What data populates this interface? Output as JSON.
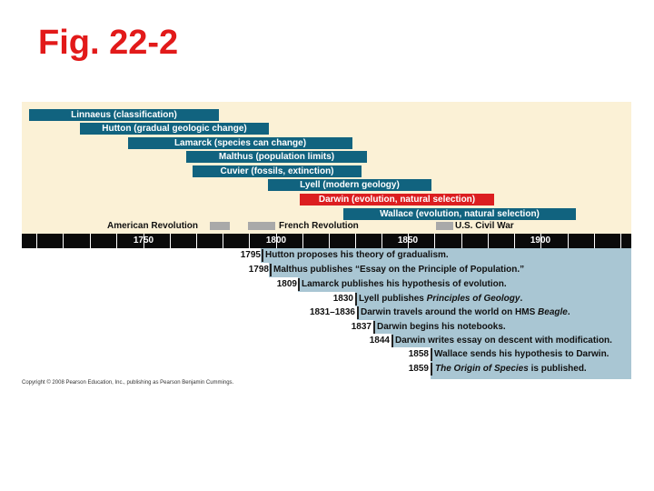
{
  "title": "Fig. 22-2",
  "life_spans": [
    {
      "label": "Linnaeus (classification)",
      "color": "#11637f"
    },
    {
      "label": "Hutton (gradual geologic change)",
      "color": "#11637f"
    },
    {
      "label": "Lamarck (species can change)",
      "color": "#11637f"
    },
    {
      "label": "Malthus (population limits)",
      "color": "#11637f"
    },
    {
      "label": "Cuvier (fossils, extinction)",
      "color": "#11637f"
    },
    {
      "label": "Lyell (modern geology)",
      "color": "#11637f"
    },
    {
      "label": "Darwin (evolution, natural selection)",
      "color": "#dc1e20"
    },
    {
      "label": "Wallace (evolution, natural selection)",
      "color": "#11637f"
    }
  ],
  "wars": [
    {
      "label": "American Revolution"
    },
    {
      "label": "French Revolution"
    },
    {
      "label": "U.S. Civil War"
    }
  ],
  "timeline": {
    "ticks": [
      "1750",
      "1800",
      "1850",
      "1900"
    ]
  },
  "events": [
    {
      "year": "1795",
      "text": "Hutton proposes his theory of gradualism."
    },
    {
      "year": "1798",
      "text": "Malthus publishes “Essay on the Principle of Population.”"
    },
    {
      "year": "1809",
      "text": "Lamarck publishes his hypothesis of evolution."
    },
    {
      "year": "1830",
      "text_before": "Lyell publishes ",
      "italic": "Principles of Geology",
      "text_after": "."
    },
    {
      "year": "1831–1836",
      "text_before": "Darwin travels around the world on HMS ",
      "italic": "Beagle",
      "text_after": "."
    },
    {
      "year": "1837",
      "text": "Darwin begins his notebooks."
    },
    {
      "year": "1844",
      "text": "Darwin writes essay on descent with modification."
    },
    {
      "year": "1858",
      "text": "Wallace sends his hypothesis to Darwin."
    },
    {
      "year": "1859",
      "text_before": "",
      "italic": "The Origin of Species",
      "text_after": " is published."
    }
  ],
  "copyright": "Copyright © 2008 Pearson Education, Inc., publishing as Pearson Benjamin Cummings.",
  "colors": {
    "title": "#e21a1a",
    "panel": "#fbf1d6",
    "bar": "#11637f",
    "highlight": "#dc1e20",
    "event_panel": "#a9c6d3"
  }
}
